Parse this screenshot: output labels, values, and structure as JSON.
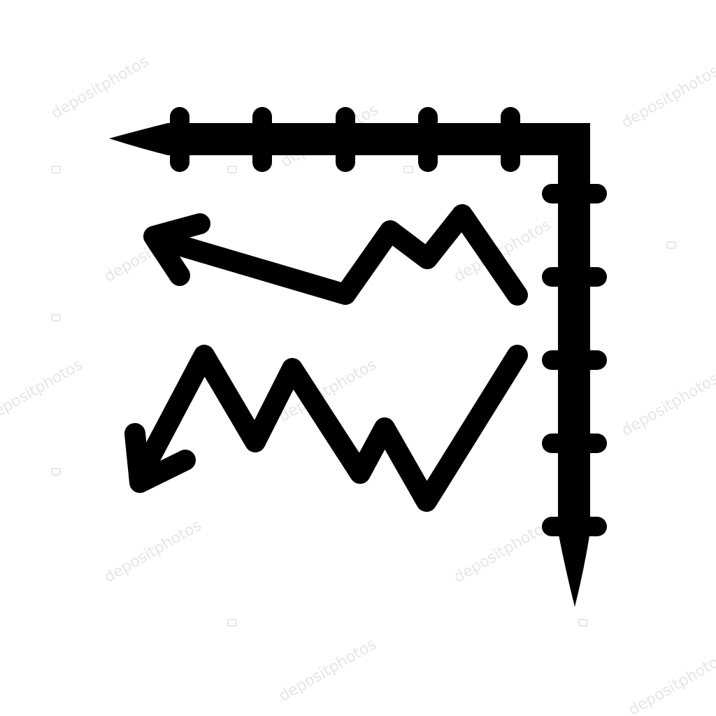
{
  "icon": {
    "name": "line-chart-axes-icon",
    "style": "glyph",
    "foreground_color": "#000000",
    "background_color": "#ffffff"
  },
  "watermark": {
    "text": "depositphotos",
    "color": "#e6e6e6"
  }
}
